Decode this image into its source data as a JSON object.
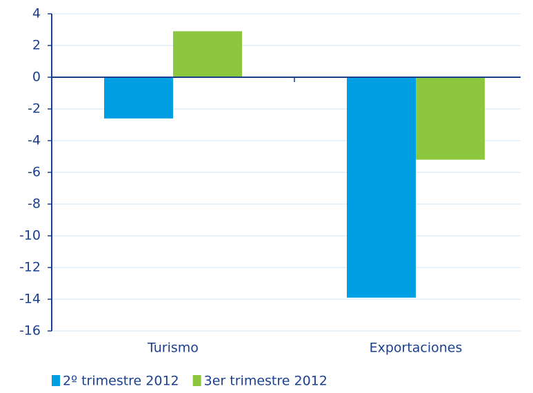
{
  "chart_data": {
    "type": "bar",
    "categories": [
      "Turismo",
      "Exportaciones"
    ],
    "series": [
      {
        "name": "2º trimestre 2012",
        "color": "#009fe3",
        "values": [
          -2.6,
          -13.9
        ]
      },
      {
        "name": "3er trimestre 2012",
        "color": "#8dc63f",
        "values": [
          2.9,
          -5.2
        ]
      }
    ],
    "ylim": [
      -16,
      4
    ],
    "yticks": [
      -16,
      -14,
      -12,
      -10,
      -8,
      -6,
      -4,
      -2,
      0,
      2,
      4
    ],
    "grid": true
  }
}
